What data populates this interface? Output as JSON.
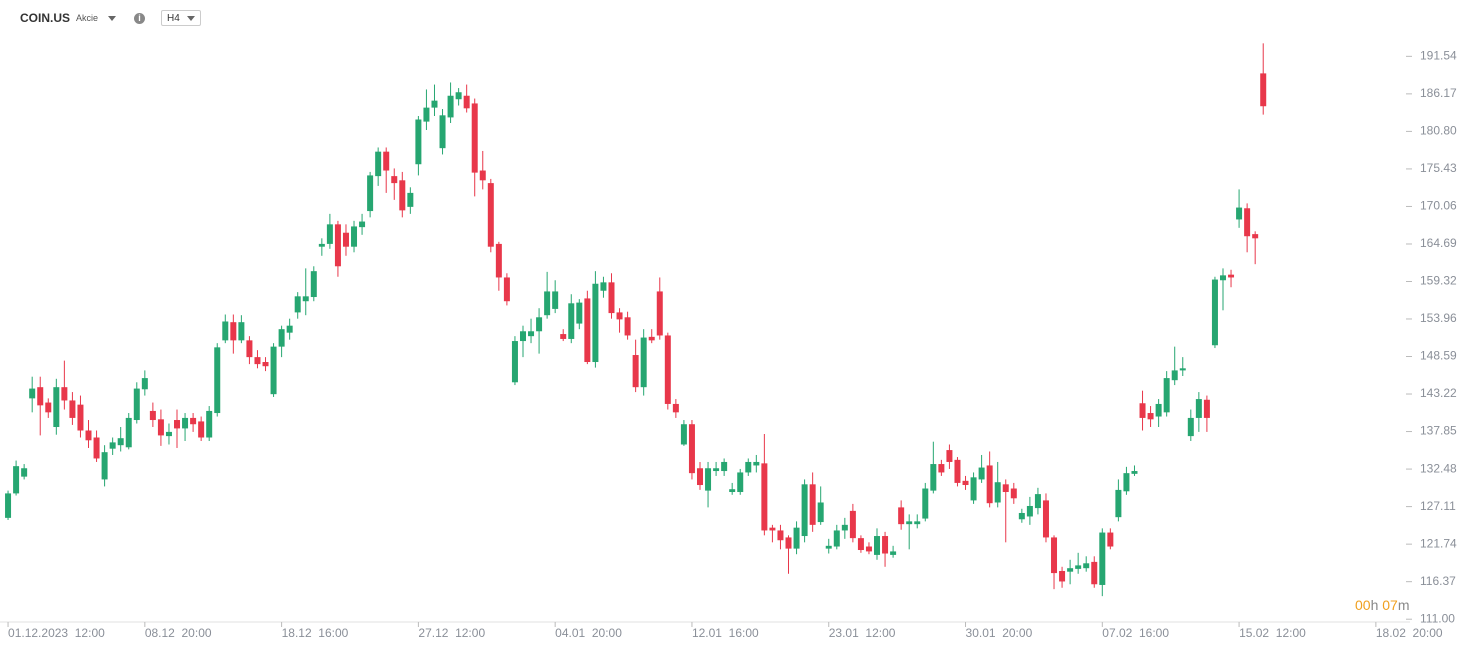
{
  "header": {
    "symbol": "COIN.US",
    "kind": "Akcie",
    "interval": "H4"
  },
  "countdown": {
    "hours": "00",
    "h": "h",
    "minutes": "07",
    "m": "m"
  },
  "chart_data": {
    "type": "candlestick",
    "up_color": "#26a671",
    "down_color": "#e8374a",
    "xlim": [
      -1,
      173
    ],
    "xticks": [
      {
        "value": 0,
        "label": "01.12.2023  12:00"
      },
      {
        "value": 17,
        "label": "08.12  20:00"
      },
      {
        "value": 34,
        "label": "18.12  16:00"
      },
      {
        "value": 51,
        "label": "27.12  12:00"
      },
      {
        "value": 68,
        "label": "04.01  20:00"
      },
      {
        "value": 85,
        "label": "12.01  16:00"
      },
      {
        "value": 102,
        "label": "23.01  12:00"
      },
      {
        "value": 119,
        "label": "30.01  20:00"
      },
      {
        "value": 136,
        "label": "07.02  16:00"
      },
      {
        "value": 153,
        "label": "15.02  12:00"
      },
      {
        "value": 170,
        "label": "18.02  20:00"
      }
    ],
    "ylim": [
      110.6,
      199.6
    ],
    "yticks": [
      {
        "value": 111,
        "label": "111.00"
      },
      116.37,
      121.74,
      127.11,
      132.48,
      137.85,
      143.22,
      148.59,
      153.96,
      159.32,
      164.69,
      170.06,
      175.43,
      {
        "value": 180.8,
        "label": "180.80"
      },
      186.17,
      191.54
    ],
    "open": [
      125.5,
      129.0,
      131.4,
      142.6,
      144.2,
      142.0,
      138.5,
      144.2,
      142.3,
      141.7,
      138.0,
      137.0,
      131.0,
      135.4,
      135.9,
      135.6,
      139.5,
      143.9,
      140.8,
      139.6,
      137.2,
      139.5,
      138.3,
      139.8,
      139.3,
      137.0,
      140.5,
      150.9,
      153.5,
      150.9,
      150.9,
      148.5,
      147.8,
      143.2,
      150.0,
      152.0,
      154.9,
      156.5,
      157.1,
      164.3,
      164.7,
      167.5,
      166.3,
      164.3,
      167.1,
      169.4,
      174.4,
      177.9,
      174.4,
      173.8,
      170.0,
      176.1,
      182.2,
      184.2,
      178.4,
      182.8,
      185.4,
      185.9,
      184.8,
      175.2,
      173.4,
      164.7,
      159.9,
      144.9,
      150.8,
      151.5,
      152.2,
      154.5,
      155.4,
      151.8,
      151.1,
      153.3,
      156.9,
      147.8,
      158.0,
      159.2,
      154.9,
      154.2,
      148.8,
      144.2,
      151.4,
      157.9,
      151.6,
      141.8,
      136.0,
      138.9,
      132.6,
      129.4,
      132.2,
      132.2,
      129.2,
      129.2,
      132.0,
      133.0,
      133.3,
      124.1,
      123.7,
      122.7,
      121.1,
      122.9,
      130.3,
      124.9,
      121.1,
      121.4,
      123.7,
      126.5,
      122.6,
      121.4,
      120.2,
      122.9,
      120.2,
      127.0,
      124.6,
      124.6,
      125.4,
      129.4,
      133.2,
      135.2,
      133.8,
      130.8,
      128.0,
      131.0,
      133.0,
      127.7,
      130.3,
      129.7,
      125.3,
      125.7,
      126.9,
      128.0,
      122.7,
      117.9,
      117.8,
      118.2,
      118.3,
      119.2,
      115.9,
      123.4,
      125.6,
      129.3,
      131.8,
      141.9,
      140.5,
      140.0,
      140.6,
      145.2,
      146.6,
      137.2,
      139.8,
      142.4,
      150.2,
      159.5,
      160.3,
      168.2,
      169.8,
      166.1,
      189.1
    ],
    "high": [
      129.4,
      133.7,
      133.2,
      145.7,
      145.7,
      142.6,
      145.4,
      148.0,
      143.5,
      143.0,
      139.5,
      138.0,
      135.9,
      137.0,
      138.5,
      140.5,
      144.9,
      146.6,
      142.0,
      141.0,
      139.0,
      141.0,
      140.5,
      140.5,
      140.0,
      141.5,
      150.5,
      154.6,
      154.6,
      154.5,
      151.5,
      149.5,
      148.5,
      150.5,
      153.0,
      154.0,
      157.8,
      161.2,
      161.5,
      165.5,
      169.0,
      168.0,
      167.5,
      168.0,
      169.0,
      175.0,
      178.5,
      178.5,
      175.5,
      175.0,
      172.8,
      183.0,
      186.8,
      187.5,
      184.0,
      187.8,
      187.0,
      187.5,
      185.5,
      178.0,
      174.0,
      165.0,
      160.5,
      151.5,
      153.0,
      154.0,
      155.5,
      160.7,
      159.5,
      152.5,
      157.5,
      156.8,
      158.0,
      160.8,
      160.0,
      160.5,
      155.5,
      155.0,
      151.0,
      152.5,
      152.5,
      159.9,
      152.0,
      142.5,
      139.5,
      139.5,
      133.5,
      133.5,
      133.5,
      134.0,
      130.5,
      132.5,
      134.0,
      134.5,
      137.5,
      124.5,
      124.5,
      123.0,
      125.0,
      131.0,
      132.0,
      130.0,
      122.5,
      124.5,
      125.5,
      127.5,
      123.0,
      122.0,
      124.0,
      123.5,
      121.5,
      128.0,
      126.0,
      126.0,
      130.5,
      136.4,
      133.8,
      136.0,
      134.2,
      131.5,
      132.0,
      134.5,
      135.0,
      133.5,
      131.0,
      130.5,
      126.8,
      128.5,
      129.8,
      129.0,
      123.0,
      118.5,
      119.5,
      120.5,
      120.0,
      120.0,
      124.0,
      124.0,
      131.0,
      132.8,
      133.0,
      143.7,
      141.5,
      142.5,
      146.5,
      150.0,
      148.5,
      141.0,
      143.5,
      143.0,
      160.0,
      161.2,
      161.0,
      172.5,
      170.5,
      166.5,
      193.4
    ],
    "low": [
      125.2,
      128.7,
      131.0,
      140.6,
      137.3,
      139.8,
      137.4,
      141.0,
      138.8,
      137.0,
      135.5,
      133.5,
      130.0,
      134.5,
      135.0,
      135.3,
      139.0,
      143.0,
      138.5,
      135.8,
      136.0,
      135.5,
      136.5,
      137.8,
      136.5,
      136.5,
      140.0,
      150.5,
      149.0,
      150.5,
      147.5,
      146.9,
      146.5,
      142.8,
      148.5,
      151.0,
      154.0,
      154.5,
      156.5,
      163.0,
      164.0,
      160.0,
      163.0,
      163.5,
      166.0,
      168.5,
      173.0,
      172.0,
      171.0,
      168.5,
      169.0,
      174.5,
      181.0,
      183.0,
      177.5,
      182.0,
      184.5,
      183.5,
      171.5,
      172.5,
      163.5,
      158.0,
      155.9,
      144.5,
      148.5,
      150.5,
      149.0,
      154.0,
      154.8,
      150.8,
      150.5,
      152.5,
      147.5,
      147.0,
      157.0,
      154.0,
      152.0,
      151.0,
      143.5,
      143.0,
      150.5,
      151.0,
      141.0,
      139.8,
      135.8,
      131.0,
      129.5,
      127.0,
      131.5,
      131.5,
      128.8,
      128.8,
      131.5,
      132.0,
      123.0,
      122.0,
      121.0,
      117.5,
      120.3,
      122.0,
      123.5,
      124.5,
      120.4,
      121.0,
      122.5,
      122.0,
      120.5,
      120.3,
      119.5,
      118.5,
      119.8,
      123.8,
      121.0,
      124.0,
      125.0,
      129.0,
      131.5,
      132.5,
      130.0,
      129.5,
      127.5,
      130.5,
      127.0,
      127.0,
      122.0,
      127.5,
      124.8,
      124.5,
      126.0,
      122.0,
      115.3,
      115.5,
      116.0,
      117.5,
      117.8,
      115.5,
      114.3,
      121.0,
      125.0,
      128.8,
      131.5,
      138.0,
      138.5,
      138.5,
      140.0,
      144.5,
      145.8,
      136.5,
      137.8,
      137.8,
      149.8,
      155.2,
      158.5,
      167.0,
      163.5,
      161.8,
      183.2
    ],
    "close": [
      129.0,
      132.9,
      132.6,
      144.0,
      141.6,
      140.6,
      144.2,
      142.3,
      139.8,
      138.0,
      136.6,
      134.0,
      134.9,
      136.3,
      136.9,
      139.8,
      144.0,
      145.5,
      139.5,
      137.3,
      137.8,
      138.3,
      139.8,
      138.9,
      137.0,
      140.8,
      149.9,
      153.6,
      150.9,
      153.5,
      148.5,
      147.5,
      147.2,
      150.0,
      152.5,
      153.0,
      157.2,
      157.2,
      160.8,
      164.7,
      167.5,
      161.5,
      164.3,
      167.2,
      167.9,
      174.5,
      177.9,
      175.2,
      173.4,
      169.5,
      172.0,
      182.5,
      184.2,
      185.2,
      183.1,
      185.9,
      186.4,
      184.1,
      174.9,
      173.8,
      164.3,
      159.9,
      156.5,
      150.8,
      152.2,
      152.2,
      154.2,
      157.9,
      157.9,
      151.1,
      156.2,
      156.3,
      147.8,
      159.0,
      159.2,
      154.8,
      153.9,
      151.6,
      144.2,
      151.3,
      150.9,
      151.6,
      141.8,
      140.6,
      138.9,
      131.9,
      130.2,
      132.6,
      132.6,
      133.5,
      129.6,
      132.0,
      133.5,
      133.5,
      123.7,
      123.7,
      122.3,
      121.1,
      124.1,
      130.3,
      124.5,
      127.7,
      121.5,
      123.7,
      124.5,
      122.6,
      120.9,
      120.7,
      122.9,
      120.4,
      120.7,
      124.6,
      125.0,
      125.0,
      129.7,
      133.2,
      132.0,
      133.5,
      130.5,
      130.2,
      131.3,
      132.7,
      127.6,
      130.6,
      129.2,
      128.3,
      126.2,
      127.2,
      128.9,
      122.7,
      117.6,
      116.4,
      118.3,
      118.7,
      119.0,
      116.0,
      123.4,
      121.4,
      129.5,
      131.9,
      132.2,
      139.8,
      139.6,
      141.8,
      145.5,
      146.6,
      146.9,
      139.8,
      142.5,
      139.8,
      159.6,
      160.2,
      159.9,
      169.9,
      165.8,
      165.5,
      184.4
    ]
  }
}
